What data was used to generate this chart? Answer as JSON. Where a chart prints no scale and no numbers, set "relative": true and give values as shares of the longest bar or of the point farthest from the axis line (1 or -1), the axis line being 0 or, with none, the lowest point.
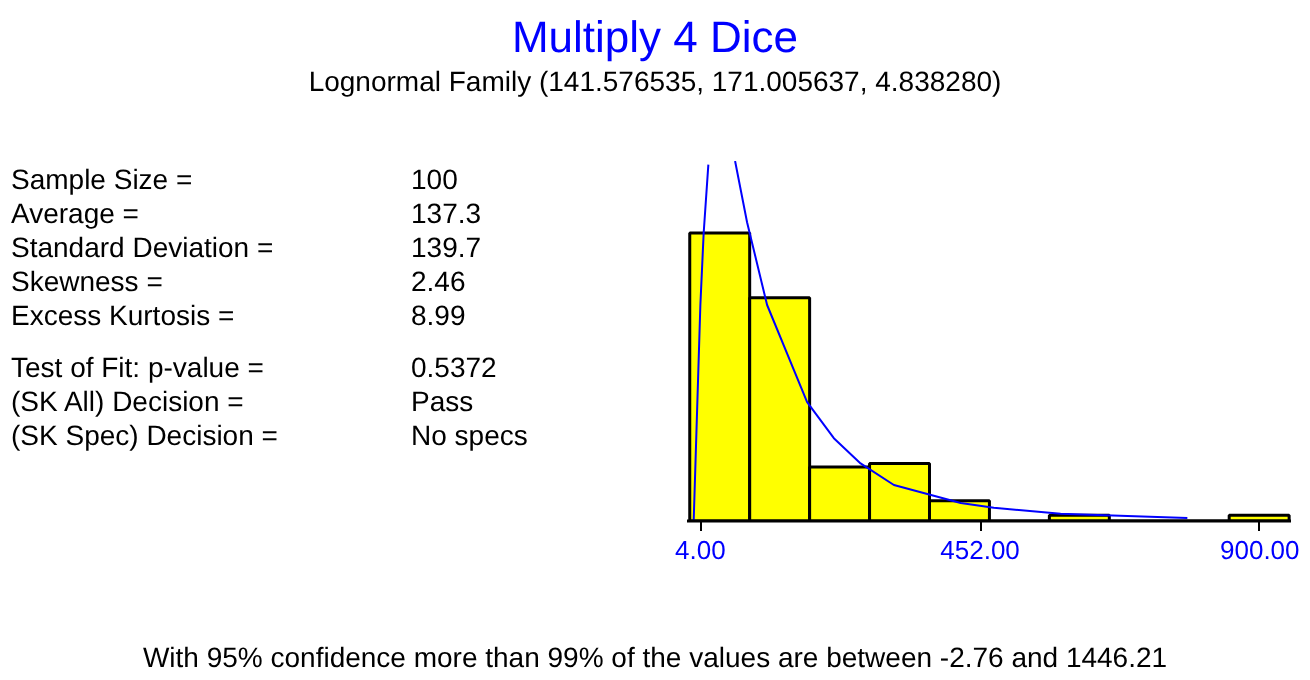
{
  "chart_data": {
    "type": "histogram",
    "title": "Multiply 4 Dice",
    "subtitle": "Lognormal Family (141.576535, 171.005637, 4.838280)",
    "relative": true,
    "color": "#ffff00",
    "bins": [
      -13,
      83,
      179,
      275,
      371,
      467,
      563,
      659,
      755,
      851,
      947
    ],
    "values": [
      0.8,
      0.62,
      0.15,
      0.16,
      0.056,
      0,
      0.016,
      0,
      0,
      0.016
    ],
    "series": [
      {
        "type": "line",
        "color": "#0000ff",
        "x": [
          -6.7,
          4,
          9.3,
          16.8,
          null,
          59.6,
          78.8,
          110.9,
          153.7,
          175,
          217.8,
          260.6,
          314,
          367.5,
          421,
          474,
          581,
          688,
          784
        ],
        "values": [
          0,
          0.6,
          0.8,
          0.99,
          null,
          1,
          0.83,
          0.6,
          0.42,
          0.33,
          0.23,
          0.16,
          0.1,
          0.075,
          0.05,
          0.037,
          0.02,
          0.014,
          0.008
        ]
      }
    ],
    "xlim": [
      -17.4,
      950
    ],
    "xticks": [
      {
        "value": 4,
        "label": "4.00"
      },
      {
        "value": 452,
        "label": "452.00"
      },
      {
        "value": 900,
        "label": "900.00"
      }
    ],
    "grid": false,
    "annotations": [
      "Sample Size =",
      "100",
      "Average =",
      "137.3",
      "Standard Deviation =",
      "139.7",
      "Skewness =",
      "2.46",
      "Excess Kurtosis =",
      "8.99",
      "Test of Fit:  p-value =",
      "0.5372",
      " (SK All)       Decision =",
      "Pass",
      " (SK Spec)  Decision =",
      "No specs",
      "With 95% confidence more than 99% of the values are between -2.76 and 1446.21"
    ]
  }
}
